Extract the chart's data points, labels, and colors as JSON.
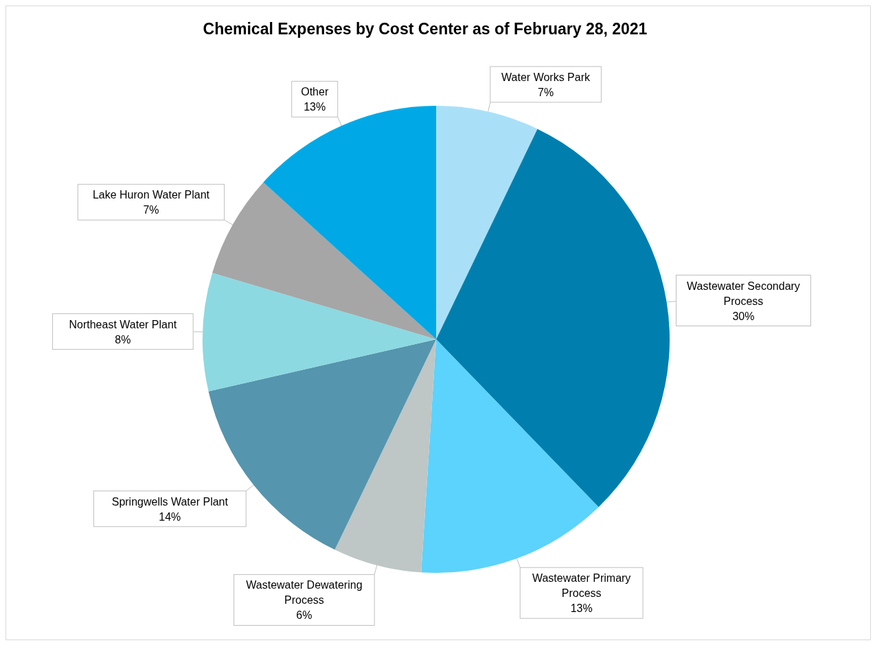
{
  "chart_data": {
    "type": "pie",
    "title": "Chemical Expenses by Cost Center as of February 28, 2021",
    "categories": [
      "Water Works Park",
      "Wastewater Secondary Process",
      "Wastewater Primary Process",
      "Wastewater Dewatering Process",
      "Springwells Water Plant",
      "Northeast Water Plant",
      "Lake Huron Water Plant",
      "Other"
    ],
    "values": [
      7,
      30,
      13,
      6,
      14,
      8,
      7,
      13
    ],
    "colors": [
      "#a9e0f8",
      "#007fae",
      "#5bd3fc",
      "#bec6c6",
      "#5595ae",
      "#8cd9e2",
      "#a6a6a6",
      "#00a9e6"
    ],
    "value_labels": [
      "7%",
      "30%",
      "13%",
      "6%",
      "14%",
      "8%",
      "7%",
      "13%"
    ]
  }
}
